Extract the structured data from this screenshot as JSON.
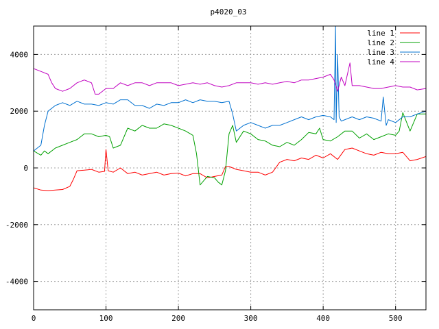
{
  "chart_data": {
    "type": "line",
    "title": "p4020_03",
    "xlabel": "",
    "ylabel": "",
    "xlim": [
      0,
      542
    ],
    "ylim": [
      -5000,
      5000
    ],
    "x_ticks": [
      0,
      100,
      200,
      300,
      400,
      500
    ],
    "y_ticks": [
      -4000,
      -2000,
      0,
      2000,
      4000
    ],
    "grid": true,
    "legend_position": "top-right",
    "series": [
      {
        "name": "line 1",
        "color": "#ff0000",
        "x": [
          0,
          10,
          20,
          30,
          40,
          50,
          55,
          60,
          70,
          80,
          90,
          98,
          100,
          103,
          110,
          120,
          130,
          140,
          150,
          160,
          170,
          180,
          190,
          200,
          210,
          220,
          230,
          240,
          250,
          260,
          265,
          270,
          280,
          290,
          300,
          310,
          320,
          330,
          340,
          350,
          360,
          370,
          380,
          390,
          400,
          410,
          420,
          430,
          440,
          450,
          460,
          470,
          480,
          490,
          500,
          510,
          520,
          530,
          542
        ],
        "y": [
          -700,
          -780,
          -800,
          -780,
          -760,
          -650,
          -400,
          -100,
          -80,
          -50,
          -150,
          -120,
          650,
          -100,
          -150,
          0,
          -200,
          -150,
          -250,
          -200,
          -150,
          -250,
          -200,
          -180,
          -280,
          -200,
          -200,
          -350,
          -300,
          -250,
          50,
          50,
          -50,
          -100,
          -150,
          -150,
          -250,
          -150,
          200,
          300,
          250,
          350,
          300,
          450,
          350,
          500,
          300,
          650,
          700,
          600,
          500,
          450,
          550,
          500,
          500,
          550,
          250,
          300,
          400
        ]
      },
      {
        "name": "line 2",
        "color": "#00a000",
        "x": [
          0,
          10,
          15,
          20,
          30,
          40,
          50,
          60,
          65,
          70,
          80,
          90,
          100,
          105,
          110,
          120,
          130,
          140,
          150,
          160,
          170,
          180,
          190,
          200,
          210,
          220,
          225,
          230,
          240,
          250,
          255,
          260,
          265,
          270,
          275,
          280,
          290,
          300,
          310,
          320,
          330,
          340,
          350,
          360,
          370,
          380,
          390,
          395,
          400,
          410,
          420,
          430,
          440,
          450,
          460,
          470,
          480,
          490,
          500,
          505,
          510,
          520,
          530,
          542
        ],
        "y": [
          600,
          450,
          600,
          500,
          700,
          800,
          900,
          1000,
          1100,
          1200,
          1200,
          1100,
          1150,
          1100,
          700,
          800,
          1400,
          1300,
          1500,
          1400,
          1400,
          1550,
          1500,
          1400,
          1300,
          1150,
          500,
          -600,
          -300,
          -350,
          -500,
          -600,
          -100,
          1200,
          1500,
          900,
          1300,
          1200,
          1000,
          950,
          800,
          750,
          900,
          800,
          1000,
          1250,
          1200,
          1400,
          1000,
          950,
          1100,
          1300,
          1300,
          1050,
          1200,
          1000,
          1100,
          1200,
          1150,
          1300,
          1950,
          1300,
          1900,
          1900
        ]
      },
      {
        "name": "line 3",
        "color": "#0070d0",
        "x": [
          0,
          10,
          15,
          20,
          30,
          40,
          50,
          60,
          70,
          80,
          90,
          100,
          110,
          120,
          130,
          140,
          150,
          160,
          170,
          180,
          190,
          200,
          210,
          220,
          230,
          240,
          250,
          260,
          270,
          275,
          280,
          290,
          300,
          310,
          320,
          330,
          340,
          350,
          360,
          370,
          380,
          390,
          400,
          410,
          415,
          417,
          418,
          420,
          422,
          425,
          430,
          440,
          450,
          460,
          470,
          480,
          483,
          487,
          490,
          500,
          510,
          520,
          530,
          542
        ],
        "y": [
          600,
          800,
          1500,
          2000,
          2200,
          2300,
          2200,
          2350,
          2250,
          2250,
          2200,
          2300,
          2250,
          2400,
          2400,
          2200,
          2200,
          2100,
          2250,
          2200,
          2300,
          2300,
          2400,
          2300,
          2400,
          2350,
          2350,
          2300,
          2350,
          1900,
          1300,
          1500,
          1600,
          1500,
          1400,
          1500,
          1500,
          1600,
          1700,
          1800,
          1700,
          1800,
          1850,
          1800,
          1700,
          5000,
          1600,
          4000,
          1800,
          1650,
          1700,
          1800,
          1700,
          1800,
          1750,
          1650,
          2500,
          1500,
          1700,
          1600,
          1800,
          1800,
          1900,
          2000
        ]
      },
      {
        "name": "line 4",
        "color": "#c000c0",
        "x": [
          0,
          10,
          20,
          25,
          30,
          40,
          50,
          60,
          70,
          80,
          85,
          90,
          100,
          110,
          120,
          130,
          140,
          150,
          160,
          170,
          180,
          190,
          200,
          210,
          220,
          230,
          240,
          250,
          260,
          270,
          280,
          290,
          300,
          310,
          320,
          330,
          340,
          350,
          360,
          370,
          380,
          390,
          400,
          410,
          415,
          420,
          425,
          430,
          437,
          440,
          450,
          460,
          470,
          480,
          490,
          500,
          510,
          520,
          530,
          542
        ],
        "y": [
          3500,
          3400,
          3300,
          3000,
          2800,
          2700,
          2800,
          3000,
          3100,
          3000,
          2600,
          2600,
          2800,
          2800,
          3000,
          2900,
          3000,
          3000,
          2900,
          3000,
          3000,
          3000,
          2900,
          2950,
          3000,
          2950,
          3000,
          2900,
          2850,
          2900,
          3000,
          3000,
          3000,
          2950,
          3000,
          2950,
          3000,
          3050,
          3000,
          3100,
          3100,
          3150,
          3200,
          3300,
          3100,
          2700,
          3200,
          2900,
          3700,
          2900,
          2900,
          2850,
          2800,
          2800,
          2850,
          2900,
          2850,
          2850,
          2750,
          2800
        ]
      }
    ]
  }
}
